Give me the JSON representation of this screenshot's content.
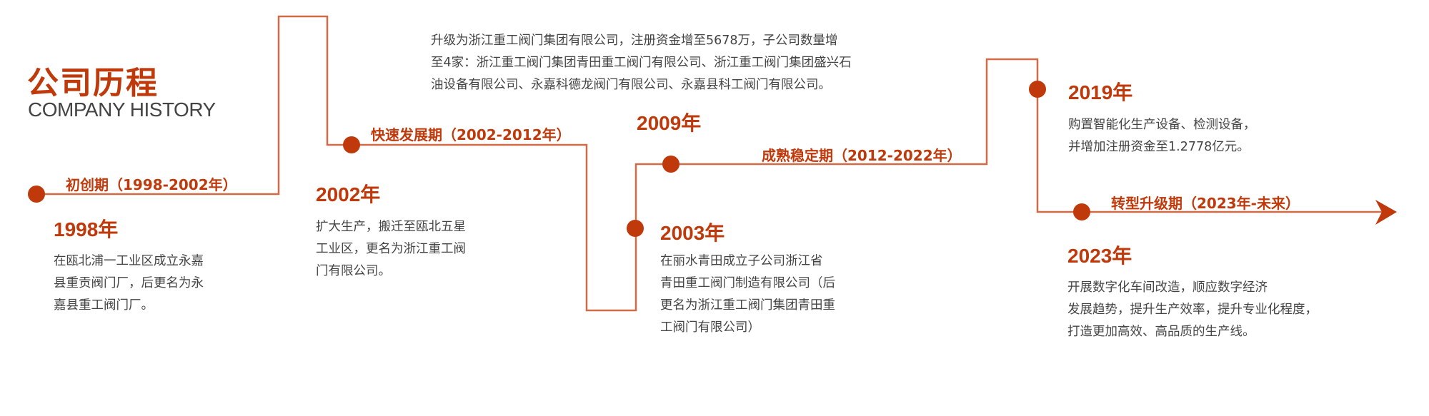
{
  "header": {
    "title": "公司历程",
    "subtitle": "COMPANY HISTORY"
  },
  "colors": {
    "accent": "#c0390b",
    "line": "#d06a47",
    "text": "#444444"
  },
  "periods": [
    {
      "label": "初创期（1998-2002年）"
    },
    {
      "label": "快速发展期（2002-2012年）"
    },
    {
      "label": "成熟稳定期（2012-2022年）"
    },
    {
      "label": "转型升级期（2023年-未来）"
    }
  ],
  "milestones": [
    {
      "year": "1998年",
      "lines": [
        "在瓯北浦一工业区成立永嘉",
        "县重贡阀门厂，后更名为永",
        "嘉县重工阀门厂。"
      ]
    },
    {
      "year": "2002年",
      "lines": [
        "扩大生产，搬迁至瓯北五星",
        "工业区，更名为浙江重工阀",
        "门有限公司。"
      ]
    },
    {
      "year": "2009年",
      "lines": [
        "升级为浙江重工阀门集团有限公司，注册资金增至5678万，子公司数量增",
        "至4家：浙江重工阀门集团青田重工阀门有限公司、浙江重工阀门集团盛兴石",
        "油设备有限公司、永嘉科德龙阀门有限公司、永嘉县科工阀门有限公司。"
      ]
    },
    {
      "year": "2003年",
      "lines": [
        "在丽水青田成立子公司浙江省",
        "青田重工阀门制造有限公司（后",
        "更名为浙江重工阀门集团青田重",
        "工阀门有限公司）"
      ]
    },
    {
      "year": "2019年",
      "lines": [
        "购置智能化生产设备、检测设备，",
        "并增加注册资金至1.2778亿元。"
      ]
    },
    {
      "year": "2023年",
      "lines": [
        "开展数字化车间改造，顺应数字经济",
        "发展趋势，提升生产效率，提升专业化程度，",
        "打造更加高效、高品质的生产线。"
      ]
    }
  ]
}
